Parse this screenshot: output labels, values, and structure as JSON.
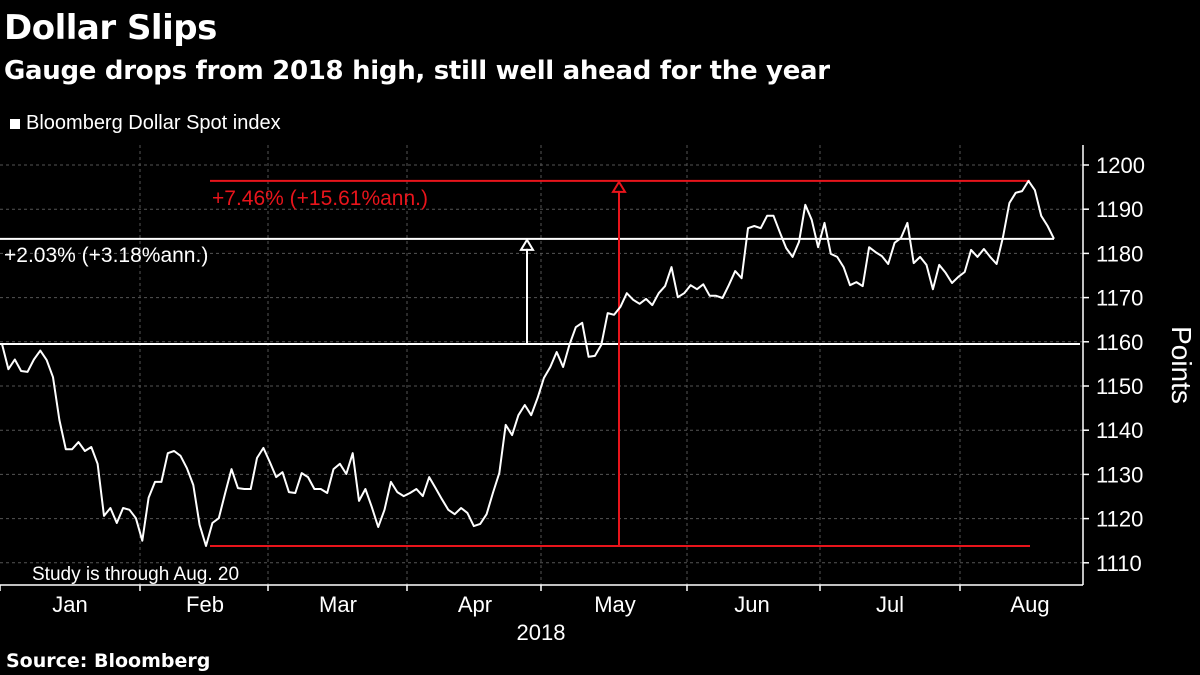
{
  "chart_data": {
    "type": "line",
    "title": "Dollar Slips",
    "subtitle": "Gauge drops from 2018 high, still well ahead for the year",
    "legend": [
      "Bloomberg Dollar Spot index"
    ],
    "legend_placement": "top-left",
    "xlabel": "2018",
    "ylabel": "Points",
    "x_tick_labels": [
      "Jan",
      "Feb",
      "Mar",
      "Apr",
      "May",
      "Jun",
      "Jul",
      "Aug"
    ],
    "y_ticks": [
      1110,
      1120,
      1130,
      1140,
      1150,
      1160,
      1170,
      1180,
      1190,
      1200
    ],
    "ylim": [
      1106,
      1204
    ],
    "grid": true,
    "series": [
      {
        "name": "Bloomberg Dollar Spot index",
        "color": "#ffffff",
        "values": [
          1159.5,
          1153.8,
          1156,
          1153.4,
          1153.2,
          1156,
          1158,
          1155.9,
          1152,
          1142.3,
          1135.7,
          1135.7,
          1137.3,
          1135.3,
          1136.2,
          1132.4,
          1120.6,
          1122.4,
          1119,
          1122.4,
          1122,
          1120.1,
          1115,
          1124.7,
          1128.3,
          1128.3,
          1134.8,
          1135.3,
          1134.2,
          1131.4,
          1127.6,
          1118.6,
          1113.8,
          1119,
          1120.1,
          1125.8,
          1131.2,
          1126.9,
          1126.7,
          1126.7,
          1133.7,
          1136,
          1132.8,
          1129.4,
          1130.5,
          1126,
          1125.8,
          1130.3,
          1129.4,
          1126.7,
          1126.7,
          1125.8,
          1131.2,
          1132.4,
          1130.1,
          1134.8,
          1124,
          1126.7,
          1122.6,
          1118.1,
          1122,
          1128.3,
          1126,
          1125.1,
          1125.8,
          1126.7,
          1125.1,
          1129.4,
          1126.9,
          1124.4,
          1122,
          1121,
          1122.4,
          1121.3,
          1118.3,
          1118.8,
          1121,
          1125.8,
          1130.3,
          1141.2,
          1138.9,
          1143.4,
          1145.7,
          1143.4,
          1147.3,
          1151.8,
          1154.3,
          1157.7,
          1154.3,
          1159.3,
          1163.3,
          1164.3,
          1156.6,
          1156.8,
          1159.3,
          1166.5,
          1166.1,
          1167.9,
          1171,
          1169.5,
          1168.6,
          1169.7,
          1168.3,
          1171,
          1172.6,
          1176.9,
          1170.1,
          1171,
          1172.8,
          1171.9,
          1173,
          1170.4,
          1170.4,
          1169.9,
          1172.8,
          1176,
          1174.4,
          1185.7,
          1186.2,
          1185.7,
          1188.5,
          1188.5,
          1184.8,
          1181.2,
          1179.2,
          1182.6,
          1191,
          1187.6,
          1181.4,
          1186.9,
          1179.9,
          1179.2,
          1176.9,
          1172.8,
          1173.5,
          1172.6,
          1181.4,
          1180.3,
          1179.4,
          1177.6,
          1182.4,
          1183.5,
          1186.9,
          1177.8,
          1179.2,
          1177.4,
          1171.9,
          1177.4,
          1175.6,
          1173.3,
          1174.7,
          1175.8,
          1180.8,
          1179.2,
          1181,
          1179.2,
          1177.6,
          1183.7,
          1191.4,
          1193.7,
          1194.1,
          1196.4,
          1194.3,
          1188.5,
          1186.2,
          1183.3
        ]
      }
    ],
    "annotations": {
      "ytd": {
        "label": "+2.03% (+3.18%ann.)",
        "from": 1159.5,
        "to": 1183.3,
        "color": "#ffffff"
      },
      "low_to_high": {
        "label": "+7.46% (+15.61%ann.)",
        "from": 1113.8,
        "to": 1196.4,
        "color": "#e8141b"
      },
      "note": "Study is through Aug. 20"
    }
  },
  "source": "Source: Bloomberg"
}
